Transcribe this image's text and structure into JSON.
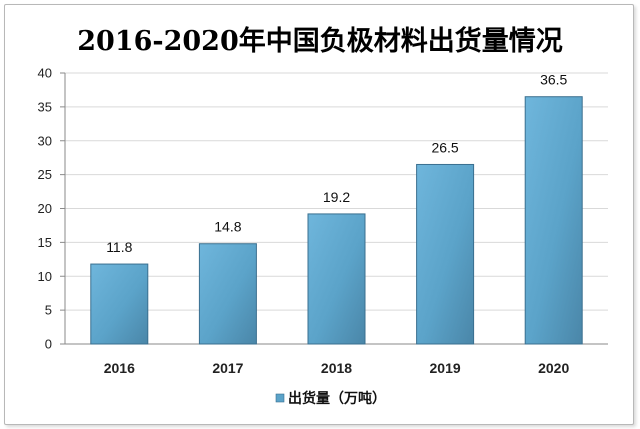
{
  "chart_data": {
    "type": "bar",
    "title": "2016-2020年中国负极材料出货量情况",
    "categories": [
      "2016",
      "2017",
      "2018",
      "2019",
      "2020"
    ],
    "series": [
      {
        "name": "出货量（万吨）",
        "values": [
          11.8,
          14.8,
          19.2,
          26.5,
          36.5
        ]
      }
    ],
    "data_labels": [
      "11.8",
      "14.8",
      "19.2",
      "26.5",
      "36.5"
    ],
    "ylim": [
      0,
      40
    ],
    "yticks": [
      0,
      5,
      10,
      15,
      20,
      25,
      30,
      35,
      40
    ],
    "xlabel": "",
    "ylabel": "",
    "grid": true,
    "legend_position": "bottom",
    "bar_color": "#5ba3c9",
    "bar_edge_color": "#3a6f8f"
  }
}
